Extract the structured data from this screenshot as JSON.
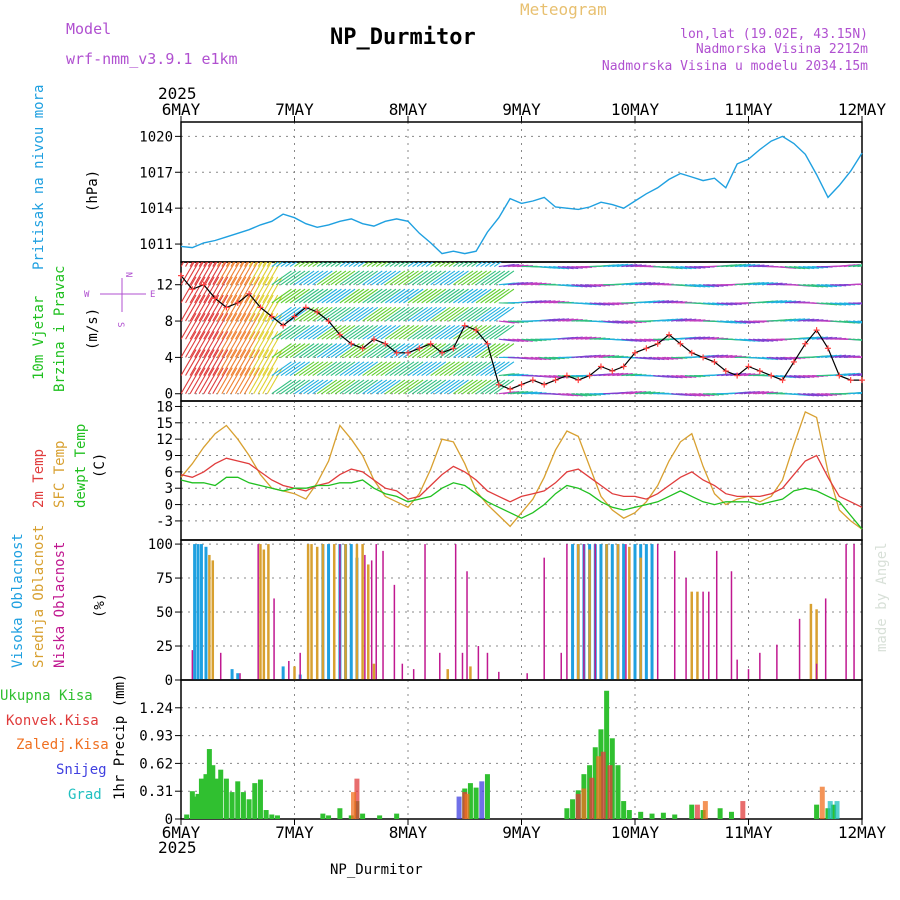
{
  "header": {
    "model_label": "Model",
    "model_name": "wrf-nmm_v3.9.1  e1km",
    "station": "NP_Durmitor",
    "product": "Meteogram",
    "lonlat": "lon,lat (19.02E, 43.15N)",
    "elevation": "Nadmorska Visina 2212m",
    "model_elevation": "Nadmorska Visina u modelu 2034.15m",
    "footer_station": "NP_Durmitor",
    "credit": "made by Angel"
  },
  "colors": {
    "pressure": "#1fa0e0",
    "temp2m": "#e03c3c",
    "sfc": "#d8a030",
    "dewpt": "#20c020",
    "wind_line": "#000000",
    "wind_marker": "#ff4040",
    "cloud_high": "#1fa0e0",
    "cloud_mid": "#d8a030",
    "cloud_low": "#c01890",
    "precip_total": "#30c030",
    "precip_conv": "#e03c3c",
    "precip_freezing": "#f07020",
    "precip_snow": "#4040e0",
    "precip_graupel": "#20c0c0",
    "compass": "#b050d0",
    "model_text": "#b050d0",
    "meteogram_text": "#e8c070"
  },
  "chart_data": [
    {
      "type": "line",
      "panel": "pressure",
      "ylabel": [
        "Pritisak na nivou mora",
        "(hPa)"
      ],
      "unit": "hPa",
      "yticks": [
        1011,
        1014,
        1017,
        1020
      ],
      "ylim": [
        1009.5,
        1021.2
      ],
      "x_year": "2025",
      "x_ticks": [
        "6MAY",
        "7MAY",
        "8MAY",
        "9MAY",
        "10MAY",
        "11MAY",
        "12MAY"
      ],
      "xlim_days": [
        0,
        6
      ],
      "grid": true,
      "series": [
        {
          "x": [
            0,
            0.1,
            0.2,
            0.3,
            0.4,
            0.5,
            0.6,
            0.7,
            0.8,
            0.9,
            1.0,
            1.1,
            1.2,
            1.3,
            1.4,
            1.5,
            1.6,
            1.7,
            1.8,
            1.9,
            2.0,
            2.1,
            2.2,
            2.3,
            2.4,
            2.5,
            2.6,
            2.7,
            2.8,
            2.9,
            3.0,
            3.1,
            3.2,
            3.3,
            3.4,
            3.5,
            3.6,
            3.7,
            3.8,
            3.9,
            4.0,
            4.1,
            4.2,
            4.3,
            4.4,
            4.5,
            4.6,
            4.7,
            4.8,
            4.9,
            5.0,
            5.1,
            5.2,
            5.3,
            5.4,
            5.5,
            5.6,
            5.7,
            5.8,
            5.9,
            6.0
          ],
          "values": [
            1010.8,
            1010.7,
            1011.1,
            1011.3,
            1011.6,
            1011.9,
            1012.2,
            1012.6,
            1012.9,
            1013.5,
            1013.2,
            1012.7,
            1012.4,
            1012.6,
            1012.9,
            1013.1,
            1012.7,
            1012.5,
            1012.9,
            1013.1,
            1012.9,
            1011.9,
            1011.1,
            1010.2,
            1010.4,
            1010.2,
            1010.4,
            1012.0,
            1013.2,
            1014.8,
            1014.4,
            1014.6,
            1014.9,
            1014.1,
            1014.0,
            1013.9,
            1014.1,
            1014.5,
            1014.3,
            1014.0,
            1014.6,
            1015.2,
            1015.7,
            1016.4,
            1016.9,
            1016.6,
            1016.3,
            1016.5,
            1015.7,
            1017.7,
            1018.1,
            1018.9,
            1019.6,
            1020.0,
            1019.4,
            1018.5,
            1016.8,
            1014.9,
            1015.9,
            1017.1,
            1018.6
          ]
        }
      ]
    },
    {
      "type": "line",
      "panel": "wind",
      "ylabel": [
        "10m Vjetar",
        "Brzina i Pravac",
        "(m/s)"
      ],
      "compass": {
        "n": "N",
        "s": "S",
        "w": "W",
        "e": "E"
      },
      "unit": "m/s",
      "yticks": [
        0,
        4,
        8,
        12
      ],
      "ylim": [
        -0.8,
        14.5
      ],
      "grid": true,
      "barb_rows": [
        0,
        2,
        4,
        6,
        8,
        10,
        12,
        14
      ],
      "series": [
        {
          "name": "speed",
          "x": [
            0,
            0.1,
            0.2,
            0.3,
            0.4,
            0.5,
            0.6,
            0.7,
            0.8,
            0.9,
            1.0,
            1.1,
            1.2,
            1.3,
            1.4,
            1.5,
            1.6,
            1.7,
            1.8,
            1.9,
            2.0,
            2.1,
            2.2,
            2.3,
            2.4,
            2.5,
            2.6,
            2.7,
            2.8,
            2.9,
            3.0,
            3.1,
            3.2,
            3.3,
            3.4,
            3.5,
            3.6,
            3.7,
            3.8,
            3.9,
            4.0,
            4.1,
            4.2,
            4.3,
            4.4,
            4.5,
            4.6,
            4.7,
            4.8,
            4.9,
            5.0,
            5.1,
            5.2,
            5.3,
            5.4,
            5.5,
            5.6,
            5.7,
            5.8,
            5.9,
            6.0
          ],
          "values": [
            13.0,
            11.5,
            12.0,
            10.5,
            9.5,
            10.0,
            11.0,
            9.5,
            8.5,
            7.5,
            8.5,
            9.5,
            9.0,
            8.0,
            6.5,
            5.5,
            5.0,
            6.0,
            5.5,
            4.5,
            4.5,
            5.0,
            5.5,
            4.5,
            5.0,
            7.5,
            7.0,
            5.5,
            1.0,
            0.5,
            1.0,
            1.5,
            1.0,
            1.5,
            2.0,
            1.5,
            2.0,
            3.0,
            2.5,
            3.0,
            4.5,
            5.0,
            5.5,
            6.5,
            5.5,
            4.5,
            4.0,
            3.5,
            2.5,
            2.0,
            3.0,
            2.5,
            2.0,
            1.5,
            3.5,
            5.5,
            7.0,
            5.0,
            2.0,
            1.5,
            1.5
          ]
        }
      ]
    },
    {
      "type": "line",
      "panel": "temperature",
      "ylabel": [
        "2m Temp",
        "SFC Temp",
        "dewpt Temp",
        "(C)"
      ],
      "unit": "C",
      "yticks": [
        -3,
        0,
        3,
        6,
        9,
        12,
        15,
        18
      ],
      "ylim": [
        -6.5,
        19
      ],
      "grid": true,
      "x": [
        0,
        0.1,
        0.2,
        0.3,
        0.4,
        0.5,
        0.6,
        0.7,
        0.8,
        0.9,
        1.0,
        1.1,
        1.2,
        1.3,
        1.4,
        1.5,
        1.6,
        1.7,
        1.8,
        1.9,
        2.0,
        2.1,
        2.2,
        2.3,
        2.4,
        2.5,
        2.6,
        2.7,
        2.8,
        2.9,
        3.0,
        3.1,
        3.2,
        3.3,
        3.4,
        3.5,
        3.6,
        3.7,
        3.8,
        3.9,
        4.0,
        4.1,
        4.2,
        4.3,
        4.4,
        4.5,
        4.6,
        4.7,
        4.8,
        4.9,
        5.0,
        5.1,
        5.2,
        5.3,
        5.4,
        5.5,
        5.6,
        5.7,
        5.8,
        5.9,
        6.0
      ],
      "series": [
        {
          "name": "2m Temp",
          "values": [
            5.5,
            5.0,
            6.0,
            7.5,
            8.5,
            8.0,
            7.5,
            6.0,
            4.5,
            3.5,
            3.0,
            2.5,
            3.5,
            4.0,
            5.5,
            6.5,
            6.0,
            4.5,
            3.0,
            2.5,
            1.0,
            1.5,
            3.5,
            5.5,
            7.0,
            6.0,
            4.5,
            2.5,
            1.5,
            0.5,
            1.5,
            2.0,
            2.5,
            4.0,
            6.0,
            6.5,
            5.0,
            3.5,
            2.0,
            1.5,
            1.5,
            1.0,
            2.0,
            3.5,
            5.0,
            6.0,
            4.5,
            3.5,
            2.0,
            1.5,
            1.5,
            1.5,
            2.0,
            3.0,
            5.5,
            8.0,
            9.0,
            5.0,
            1.5,
            0.5,
            -0.5
          ]
        },
        {
          "name": "SFC Temp",
          "values": [
            5.0,
            7.5,
            10.5,
            13.0,
            14.5,
            12.0,
            9.0,
            5.5,
            3.0,
            2.5,
            2.0,
            1.0,
            4.0,
            8.0,
            14.5,
            12.0,
            9.0,
            4.5,
            1.5,
            0.5,
            -0.5,
            2.0,
            6.5,
            12.0,
            11.5,
            7.5,
            2.5,
            0.0,
            -2.0,
            -4.0,
            -1.5,
            1.0,
            5.0,
            10.0,
            13.5,
            12.5,
            7.0,
            1.5,
            -1.0,
            -2.5,
            -1.5,
            0.5,
            3.5,
            8.0,
            11.5,
            13.0,
            7.0,
            2.0,
            0.0,
            1.0,
            1.5,
            0.5,
            1.5,
            4.5,
            11.0,
            17.0,
            16.0,
            6.0,
            -1.0,
            -3.0,
            -4.5
          ]
        },
        {
          "name": "dewpt Temp",
          "values": [
            4.5,
            4.0,
            4.0,
            3.5,
            5.0,
            5.0,
            4.0,
            3.5,
            3.0,
            2.5,
            3.0,
            3.0,
            3.5,
            3.5,
            4.0,
            4.0,
            4.5,
            3.0,
            2.0,
            1.5,
            0.5,
            1.0,
            1.5,
            3.0,
            4.0,
            3.5,
            2.0,
            0.5,
            -0.5,
            -1.5,
            -2.5,
            -1.5,
            0.0,
            2.0,
            3.5,
            3.0,
            2.0,
            0.5,
            -0.5,
            -1.0,
            -0.5,
            0.0,
            0.5,
            1.5,
            2.5,
            1.5,
            0.5,
            0.0,
            0.5,
            0.5,
            0.5,
            0.0,
            0.5,
            1.0,
            2.5,
            3.0,
            2.5,
            1.5,
            0.5,
            -2.0,
            -4.5
          ]
        }
      ]
    },
    {
      "type": "bar",
      "panel": "clouds",
      "ylabel": [
        "Visoka Oblacnost",
        "Srednja Oblacnost",
        "Niska Oblacnost",
        "(%)"
      ],
      "unit": "%",
      "yticks": [
        0,
        25,
        50,
        75,
        100
      ],
      "ylim": [
        0,
        103
      ],
      "grid": true,
      "series": [
        {
          "name": "Visoka Oblacnost",
          "x": [
            0.12,
            0.15,
            0.18,
            0.22,
            0.45,
            0.5,
            0.9,
            1.05,
            1.25,
            1.3,
            1.4,
            1.45,
            1.5,
            1.55,
            3.45,
            3.5,
            3.55,
            3.6,
            3.65,
            3.7,
            3.75,
            3.8,
            3.85,
            3.9,
            4.0,
            4.05,
            4.1,
            4.15
          ],
          "values": [
            100,
            100,
            100,
            98,
            8,
            5,
            10,
            4,
            100,
            100,
            100,
            100,
            100,
            90,
            100,
            100,
            100,
            100,
            100,
            100,
            100,
            100,
            100,
            100,
            100,
            100,
            100,
            100
          ]
        },
        {
          "name": "Srednja Oblacnost",
          "x": [
            0.25,
            0.28,
            0.7,
            0.73,
            0.77,
            1.0,
            1.12,
            1.15,
            1.2,
            1.25,
            1.35,
            1.45,
            1.55,
            1.6,
            1.65,
            1.7,
            2.35,
            2.55,
            3.5,
            3.6,
            3.75,
            3.85,
            3.95,
            4.05,
            4.5,
            4.55,
            5.55,
            5.6
          ],
          "values": [
            92,
            88,
            100,
            96,
            100,
            10,
            100,
            100,
            98,
            100,
            100,
            100,
            100,
            100,
            85,
            12,
            8,
            10,
            100,
            96,
            100,
            100,
            98,
            90,
            65,
            65,
            56,
            52
          ]
        },
        {
          "name": "Niska Oblacnost",
          "x": [
            0.1,
            0.35,
            0.52,
            0.68,
            0.82,
            0.95,
            1.05,
            1.4,
            1.62,
            1.68,
            1.72,
            1.78,
            1.88,
            1.95,
            2.05,
            2.15,
            2.28,
            2.42,
            2.48,
            2.52,
            2.62,
            2.7,
            2.8,
            3.05,
            3.2,
            3.35,
            3.4,
            3.55,
            3.65,
            3.92,
            4.2,
            4.35,
            4.45,
            4.6,
            4.65,
            4.72,
            4.85,
            4.9,
            5.0,
            5.1,
            5.25,
            5.45,
            5.6,
            5.68,
            5.86,
            5.93
          ],
          "values": [
            22,
            20,
            5,
            100,
            60,
            14,
            20,
            100,
            92,
            88,
            100,
            95,
            70,
            12,
            8,
            100,
            20,
            100,
            20,
            80,
            25,
            20,
            6,
            5,
            90,
            20,
            100,
            100,
            100,
            100,
            100,
            95,
            75,
            65,
            65,
            95,
            80,
            15,
            8,
            20,
            26,
            45,
            12,
            60,
            100,
            100
          ]
        }
      ]
    },
    {
      "type": "bar",
      "panel": "precip",
      "ylabel": [
        "1hr Precip (mm)"
      ],
      "legend": [
        "Ukupna Kisa",
        "Konvek.Kisa",
        "Zaledj.Kisa",
        "Snijeg",
        "Grad"
      ],
      "unit": "mm",
      "yticks": [
        0,
        0.31,
        0.62,
        0.93,
        1.24
      ],
      "ylim": [
        0,
        1.55
      ],
      "grid": true,
      "series": [
        {
          "name": "Ukupna Kisa",
          "x": [
            0.05,
            0.1,
            0.12,
            0.15,
            0.18,
            0.22,
            0.25,
            0.28,
            0.32,
            0.35,
            0.4,
            0.45,
            0.5,
            0.55,
            0.6,
            0.65,
            0.7,
            0.75,
            0.8,
            0.85,
            1.25,
            1.3,
            1.4,
            1.5,
            1.55,
            1.6,
            1.75,
            1.9,
            2.5,
            2.55,
            2.6,
            2.7,
            3.4,
            3.45,
            3.5,
            3.55,
            3.6,
            3.65,
            3.7,
            3.75,
            3.8,
            3.85,
            3.9,
            3.95,
            4.05,
            4.15,
            4.25,
            4.35,
            4.5,
            4.6,
            4.75,
            4.85,
            5.6,
            5.7,
            5.75
          ],
          "values": [
            0.05,
            0.31,
            0.25,
            0.28,
            0.45,
            0.5,
            0.78,
            0.6,
            0.45,
            0.55,
            0.45,
            0.3,
            0.42,
            0.3,
            0.22,
            0.4,
            0.44,
            0.1,
            0.05,
            0.04,
            0.06,
            0.04,
            0.12,
            0.04,
            0.2,
            0.06,
            0.04,
            0.06,
            0.34,
            0.4,
            0.35,
            0.5,
            0.12,
            0.22,
            0.32,
            0.5,
            0.6,
            0.8,
            1.0,
            1.43,
            0.9,
            0.6,
            0.2,
            0.1,
            0.08,
            0.06,
            0.07,
            0.05,
            0.16,
            0.1,
            0.12,
            0.08,
            0.16,
            0.12,
            0.16
          ]
        },
        {
          "name": "Konvek.Kisa",
          "x": [
            1.55,
            2.5,
            3.5,
            3.62,
            3.72,
            3.78,
            4.55,
            4.95
          ],
          "values": [
            0.45,
            0.3,
            0.28,
            0.46,
            0.75,
            0.6,
            0.16,
            0.2
          ]
        },
        {
          "name": "Zaledj.Kisa",
          "x": [
            1.52,
            2.52,
            3.55,
            3.68,
            4.62,
            5.65
          ],
          "values": [
            0.3,
            0.28,
            0.34,
            0.7,
            0.2,
            0.36
          ]
        },
        {
          "name": "Snijeg",
          "x": [
            2.45,
            2.65
          ],
          "values": [
            0.25,
            0.42
          ]
        },
        {
          "name": "Grad",
          "x": [
            5.72,
            5.78
          ],
          "values": [
            0.2,
            0.2
          ]
        }
      ]
    }
  ]
}
